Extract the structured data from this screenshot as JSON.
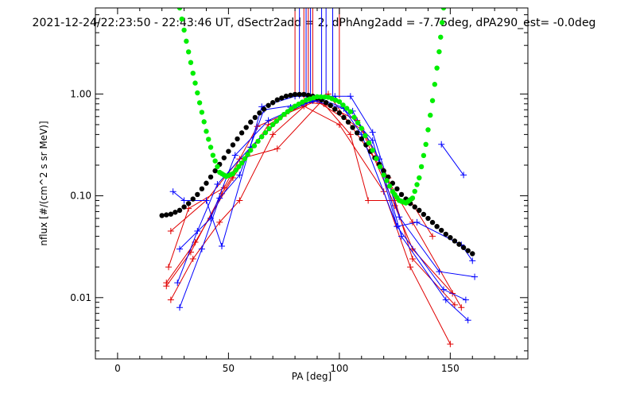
{
  "chart_data": {
    "type": "scatter",
    "title": "2021-12-24/22:23:50 - 22:43:46 UT, dSectr2add = 2, dPhAng2add = -7.75deg, dPA290_est=  -0.0deg",
    "xlabel": "PA [deg]",
    "ylabel": "nflux [#/(cm^2 s sr MeV)]",
    "xlim": [
      -10,
      185
    ],
    "ylim": [
      0.0025,
      7
    ],
    "yscale": "log",
    "x_ticks": [
      0,
      50,
      100,
      150
    ],
    "x_tick_labels": [
      "0",
      "50",
      "100",
      "150"
    ],
    "y_ticks": [
      0.01,
      0.1,
      1.0
    ],
    "y_tick_labels": [
      "0.01",
      "0.10",
      "1.00"
    ],
    "grid": false,
    "colors": {
      "red": "#e00000",
      "blue": "#0000ff",
      "black": "#000000",
      "green": "#00ee00"
    },
    "vertical_markers": [
      {
        "x": 80,
        "color": "#e00000"
      },
      {
        "x": 82,
        "color": "#0000ff"
      },
      {
        "x": 84,
        "color": "#e00000"
      },
      {
        "x": 85,
        "color": "#0000ff"
      },
      {
        "x": 86,
        "color": "#e00000"
      },
      {
        "x": 87,
        "color": "#0000ff"
      },
      {
        "x": 88,
        "color": "#e00000"
      },
      {
        "x": 92,
        "color": "#0000ff"
      },
      {
        "x": 94,
        "color": "#0000ff"
      },
      {
        "x": 97,
        "color": "#0000ff"
      },
      {
        "x": 100,
        "color": "#e00000"
      }
    ],
    "series": [
      {
        "color": "#e00000",
        "x": [
          22,
          35,
          52,
          68,
          85,
          93,
          105,
          113,
          132,
          142
        ],
        "y": [
          0.014,
          0.035,
          0.15,
          0.5,
          0.82,
          0.8,
          0.4,
          0.09,
          0.09,
          0.04
        ]
      },
      {
        "color": "#e00000",
        "x": [
          24,
          40,
          55,
          72,
          95,
          118,
          133,
          155
        ],
        "y": [
          0.045,
          0.09,
          0.23,
          0.29,
          1.0,
          0.2,
          0.055,
          0.008
        ]
      },
      {
        "color": "#e00000",
        "x": [
          23,
          32,
          48,
          63,
          84,
          100,
          120,
          132,
          150
        ],
        "y": [
          0.02,
          0.075,
          0.12,
          0.48,
          0.76,
          0.5,
          0.11,
          0.02,
          0.0035
        ]
      },
      {
        "color": "#e00000",
        "x": [
          24,
          34,
          46,
          55,
          70,
          88,
          110,
          125,
          133,
          151
        ],
        "y": [
          0.0095,
          0.024,
          0.055,
          0.09,
          0.4,
          0.9,
          0.45,
          0.08,
          0.03,
          0.011
        ]
      },
      {
        "color": "#e00000",
        "x": [
          22,
          33,
          47,
          60,
          76,
          90,
          108,
          122,
          133,
          152
        ],
        "y": [
          0.013,
          0.028,
          0.105,
          0.3,
          0.64,
          0.86,
          0.55,
          0.15,
          0.024,
          0.0085
        ]
      },
      {
        "color": "#0000ff",
        "x": [
          25,
          30,
          40,
          47,
          65,
          80,
          105,
          115,
          127,
          145,
          161
        ],
        "y": [
          0.11,
          0.09,
          0.09,
          0.032,
          0.75,
          0.95,
          0.95,
          0.42,
          0.062,
          0.018,
          0.016
        ]
      },
      {
        "color": "#0000ff",
        "x": [
          28,
          38,
          46,
          55,
          66,
          84,
          98,
          110,
          126,
          147,
          157
        ],
        "y": [
          0.008,
          0.03,
          0.095,
          0.16,
          0.7,
          0.8,
          0.95,
          0.4,
          0.05,
          0.012,
          0.0095
        ]
      },
      {
        "color": "#0000ff",
        "x": [
          27,
          36,
          45,
          60,
          78,
          92,
          106,
          118,
          128,
          148,
          158
        ],
        "y": [
          0.014,
          0.045,
          0.13,
          0.3,
          0.74,
          0.88,
          0.68,
          0.23,
          0.04,
          0.0095,
          0.006
        ]
      },
      {
        "color": "#0000ff",
        "x": [
          28,
          42,
          53,
          68,
          88,
          102,
          115,
          126,
          135,
          155,
          160
        ],
        "y": [
          0.03,
          0.06,
          0.25,
          0.55,
          0.86,
          0.72,
          0.35,
          0.05,
          0.055,
          0.033,
          0.023
        ]
      },
      {
        "color": "#0000ff",
        "x": [
          146,
          156
        ],
        "y": [
          0.32,
          0.16
        ]
      }
    ],
    "model_black": {
      "color": "#000000",
      "x": [
        20,
        24,
        28,
        32,
        36,
        40,
        44,
        48,
        52,
        56,
        60,
        64,
        68,
        72,
        76,
        80,
        84,
        88,
        92,
        96,
        100,
        104,
        108,
        112,
        116,
        120,
        124,
        128,
        132,
        136,
        140,
        144,
        148,
        152,
        156,
        160
      ],
      "y": [
        0.064,
        0.066,
        0.072,
        0.084,
        0.103,
        0.133,
        0.176,
        0.236,
        0.316,
        0.415,
        0.53,
        0.652,
        0.772,
        0.876,
        0.952,
        0.99,
        0.99,
        0.952,
        0.876,
        0.772,
        0.652,
        0.53,
        0.415,
        0.316,
        0.236,
        0.176,
        0.133,
        0.103,
        0.084,
        0.072,
        0.06,
        0.05,
        0.042,
        0.036,
        0.031,
        0.027
      ]
    },
    "model_green": {
      "color": "#00ee00",
      "x": [
        28,
        31,
        34,
        37,
        40,
        43,
        46,
        49,
        52,
        56,
        60,
        65,
        70,
        75,
        80,
        85,
        90,
        95,
        100,
        105,
        110,
        115,
        120,
        124,
        127,
        130,
        133,
        136,
        139,
        142,
        145,
        147
      ],
      "y": [
        7.0,
        3.3,
        1.6,
        0.82,
        0.43,
        0.25,
        0.17,
        0.155,
        0.165,
        0.21,
        0.28,
        0.38,
        0.5,
        0.63,
        0.76,
        0.87,
        0.94,
        0.93,
        0.84,
        0.67,
        0.46,
        0.28,
        0.16,
        0.11,
        0.09,
        0.085,
        0.095,
        0.15,
        0.32,
        0.86,
        2.6,
        7.0
      ]
    }
  }
}
